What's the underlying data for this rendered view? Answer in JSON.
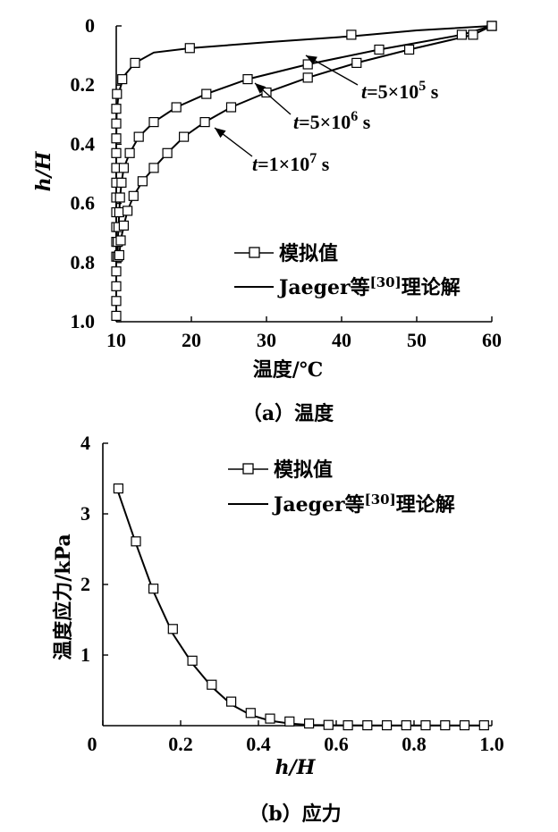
{
  "chart_data": [
    {
      "type": "line",
      "caption": "（a）温度",
      "xlabel": "温度/℃",
      "ylabel": "h/H",
      "xlim": [
        10,
        60
      ],
      "ylim": [
        0,
        1.0
      ],
      "y_inverted": true,
      "xticks": [
        "10",
        "20",
        "30",
        "40",
        "50",
        "60"
      ],
      "yticks": [
        "0",
        "0.2",
        "0.4",
        "0.6",
        "0.8",
        "1.0"
      ],
      "legend": {
        "position": "bottom-right",
        "sim_label": "模拟值",
        "theory_label": "Jaeger等",
        "theory_ref": "[30]",
        "theory_suffix": "理论解"
      },
      "annotations": [
        {
          "series": "t=5×10^5 s",
          "italic": "t",
          "base": "=5×10",
          "exp": "5",
          "unit": " s"
        },
        {
          "series": "t=5×10^6 s",
          "italic": "t",
          "base": "=5×10",
          "exp": "6",
          "unit": " s"
        },
        {
          "series": "t=1×10^7 s",
          "italic": "t",
          "base": "=1×10",
          "exp": "7",
          "unit": " s"
        }
      ],
      "series": [
        {
          "key": "t=5×10^5 s",
          "theory": [
            [
              60,
              0
            ],
            [
              50,
              0.015
            ],
            [
              41.3,
              0.035
            ],
            [
              30,
              0.055
            ],
            [
              20,
              0.075
            ],
            [
              15,
              0.09
            ],
            [
              12.5,
              0.125
            ],
            [
              11,
              0.17
            ],
            [
              10.3,
              0.23
            ],
            [
              10.05,
              0.3
            ],
            [
              10,
              0.4
            ],
            [
              10,
              0.6
            ],
            [
              10,
              0.8
            ],
            [
              10,
              0.98
            ]
          ],
          "sim": [
            [
              60,
              0
            ],
            [
              41.3,
              0.03
            ],
            [
              19.8,
              0.075
            ],
            [
              12.5,
              0.125
            ],
            [
              10.8,
              0.18
            ],
            [
              10.1,
              0.23
            ],
            [
              10,
              0.28
            ],
            [
              10,
              0.33
            ],
            [
              10,
              0.38
            ],
            [
              10,
              0.43
            ],
            [
              10,
              0.48
            ],
            [
              10,
              0.53
            ],
            [
              10,
              0.58
            ],
            [
              10,
              0.63
            ],
            [
              10,
              0.68
            ],
            [
              10,
              0.73
            ],
            [
              10,
              0.78
            ],
            [
              10,
              0.83
            ],
            [
              10,
              0.88
            ],
            [
              10,
              0.93
            ],
            [
              10,
              0.98
            ]
          ]
        },
        {
          "key": "t=5×10^6 s",
          "theory": [
            [
              60,
              0
            ],
            [
              56,
              0.03
            ],
            [
              45,
              0.08
            ],
            [
              35.5,
              0.13
            ],
            [
              27.5,
              0.18
            ],
            [
              22,
              0.23
            ],
            [
              18,
              0.275
            ],
            [
              15,
              0.325
            ],
            [
              13,
              0.375
            ],
            [
              11.8,
              0.43
            ],
            [
              11,
              0.48
            ],
            [
              10.7,
              0.53
            ],
            [
              10.5,
              0.58
            ],
            [
              10.4,
              0.63
            ],
            [
              10.3,
              0.68
            ],
            [
              10.2,
              0.73
            ],
            [
              10.2,
              0.78
            ]
          ],
          "sim": [
            [
              60,
              0
            ],
            [
              56,
              0.03
            ],
            [
              45,
              0.08
            ],
            [
              35.5,
              0.13
            ],
            [
              27.5,
              0.18
            ],
            [
              22,
              0.23
            ],
            [
              18,
              0.275
            ],
            [
              15,
              0.325
            ],
            [
              13,
              0.375
            ],
            [
              11.8,
              0.43
            ],
            [
              11,
              0.48
            ],
            [
              10.7,
              0.53
            ],
            [
              10.5,
              0.58
            ],
            [
              10.4,
              0.63
            ],
            [
              10.3,
              0.68
            ],
            [
              10.2,
              0.73
            ],
            [
              10.2,
              0.78
            ]
          ]
        },
        {
          "key": "t=1×10^7 s",
          "theory": [
            [
              60,
              0
            ],
            [
              57.5,
              0.03
            ],
            [
              49,
              0.08
            ],
            [
              42,
              0.125
            ],
            [
              35.5,
              0.175
            ],
            [
              30,
              0.225
            ],
            [
              25.3,
              0.275
            ],
            [
              21.8,
              0.325
            ],
            [
              19,
              0.375
            ],
            [
              16.8,
              0.43
            ],
            [
              15,
              0.48
            ],
            [
              13.5,
              0.525
            ],
            [
              12.3,
              0.575
            ],
            [
              11.5,
              0.625
            ],
            [
              11,
              0.675
            ],
            [
              10.6,
              0.725
            ],
            [
              10.4,
              0.775
            ]
          ],
          "sim": [
            [
              60,
              0
            ],
            [
              57.5,
              0.03
            ],
            [
              49,
              0.08
            ],
            [
              42,
              0.125
            ],
            [
              35.5,
              0.175
            ],
            [
              30,
              0.225
            ],
            [
              25.3,
              0.275
            ],
            [
              21.8,
              0.325
            ],
            [
              19,
              0.375
            ],
            [
              16.8,
              0.43
            ],
            [
              15,
              0.48
            ],
            [
              13.5,
              0.525
            ],
            [
              12.3,
              0.575
            ],
            [
              11.5,
              0.625
            ],
            [
              11,
              0.675
            ],
            [
              10.6,
              0.725
            ],
            [
              10.4,
              0.775
            ]
          ]
        }
      ]
    },
    {
      "type": "line",
      "caption": "（b）应力",
      "xlabel": "h/H",
      "ylabel": "温度应力/kPa",
      "xlim": [
        0,
        1.0
      ],
      "ylim": [
        0,
        4
      ],
      "xticks": [
        "0",
        "0.2",
        "0.4",
        "0.6",
        "0.8",
        "1.0"
      ],
      "yticks": [
        "1",
        "2",
        "3",
        "4"
      ],
      "legend": {
        "position": "top-right",
        "sim_label": "模拟值",
        "theory_label": "Jaeger等",
        "theory_ref": "[30]",
        "theory_suffix": "理论解"
      },
      "series": [
        {
          "key": "stress",
          "theory": [
            [
              0.04,
              3.3
            ],
            [
              0.085,
              2.58
            ],
            [
              0.13,
              1.9
            ],
            [
              0.18,
              1.3
            ],
            [
              0.23,
              0.88
            ],
            [
              0.28,
              0.55
            ],
            [
              0.33,
              0.3
            ],
            [
              0.38,
              0.15
            ],
            [
              0.43,
              0.07
            ],
            [
              0.48,
              0.03
            ],
            [
              0.53,
              0.01
            ],
            [
              0.6,
              0.005
            ],
            [
              0.7,
              0.003
            ],
            [
              0.8,
              0.002
            ],
            [
              0.9,
              0.002
            ],
            [
              0.98,
              0.002
            ]
          ],
          "sim": [
            [
              0.04,
              3.36
            ],
            [
              0.085,
              2.61
            ],
            [
              0.13,
              1.94
            ],
            [
              0.18,
              1.37
            ],
            [
              0.23,
              0.92
            ],
            [
              0.28,
              0.58
            ],
            [
              0.33,
              0.34
            ],
            [
              0.38,
              0.18
            ],
            [
              0.43,
              0.1
            ],
            [
              0.48,
              0.06
            ],
            [
              0.53,
              0.03
            ],
            [
              0.58,
              0.01
            ],
            [
              0.63,
              0.005
            ],
            [
              0.68,
              0.005
            ],
            [
              0.73,
              0.005
            ],
            [
              0.78,
              0.005
            ],
            [
              0.83,
              0.005
            ],
            [
              0.88,
              0.005
            ],
            [
              0.93,
              0.005
            ],
            [
              0.98,
              0.005
            ]
          ]
        }
      ]
    }
  ]
}
